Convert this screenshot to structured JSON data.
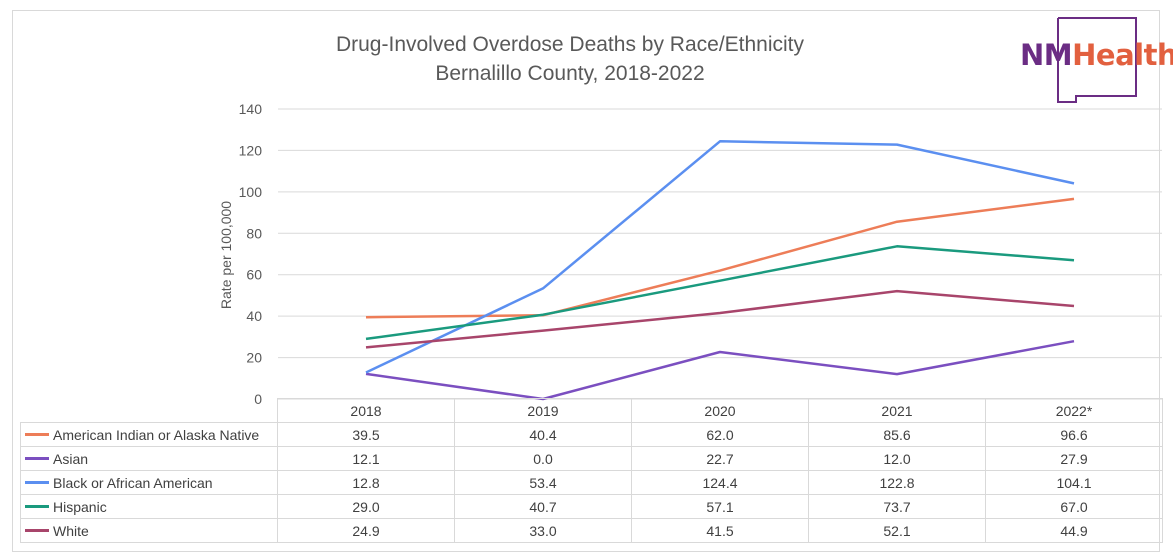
{
  "chart_data": {
    "type": "line",
    "title": [
      "Drug-Involved Overdose Deaths by Race/Ethnicity",
      "Bernalillo County, 2018-2022"
    ],
    "ylabel": "Rate per 100,000",
    "xlabel": "",
    "ylim": [
      0,
      140
    ],
    "yticks": [
      0,
      20,
      40,
      60,
      80,
      100,
      120,
      140
    ],
    "categories": [
      "2018",
      "2019",
      "2020",
      "2021",
      "2022*"
    ],
    "grid": true,
    "legend": "data-table-below",
    "series": [
      {
        "name": "American Indian or Alaska Native",
        "color": "#ed7d58",
        "values": [
          39.5,
          40.4,
          62.0,
          85.6,
          96.6
        ],
        "labels": [
          "39.5",
          "40.4",
          "62.0",
          "85.6",
          "96.6"
        ]
      },
      {
        "name": "Asian",
        "color": "#7b4fc0",
        "values": [
          12.1,
          0.0,
          22.7,
          12.0,
          27.9
        ],
        "labels": [
          "12.1",
          "0.0",
          "22.7",
          "12.0",
          "27.9"
        ]
      },
      {
        "name": "Black or African American",
        "color": "#5b8ff0",
        "values": [
          12.8,
          53.4,
          124.4,
          122.8,
          104.1
        ],
        "labels": [
          "12.8",
          "53.4",
          "124.4",
          "122.8",
          "104.1"
        ]
      },
      {
        "name": "Hispanic",
        "color": "#1a9a7e",
        "values": [
          29.0,
          40.7,
          57.1,
          73.7,
          67.0
        ],
        "labels": [
          "29.0",
          "40.7",
          "57.1",
          "73.7",
          "67.0"
        ]
      },
      {
        "name": "White",
        "color": "#a8456b",
        "values": [
          24.9,
          33.0,
          41.5,
          52.1,
          44.9
        ],
        "labels": [
          "24.9",
          "33.0",
          "41.5",
          "52.1",
          "44.9"
        ]
      }
    ]
  },
  "logo": {
    "part1": "NM",
    "part2": "Health",
    "outline_color": "#6b2d84"
  }
}
